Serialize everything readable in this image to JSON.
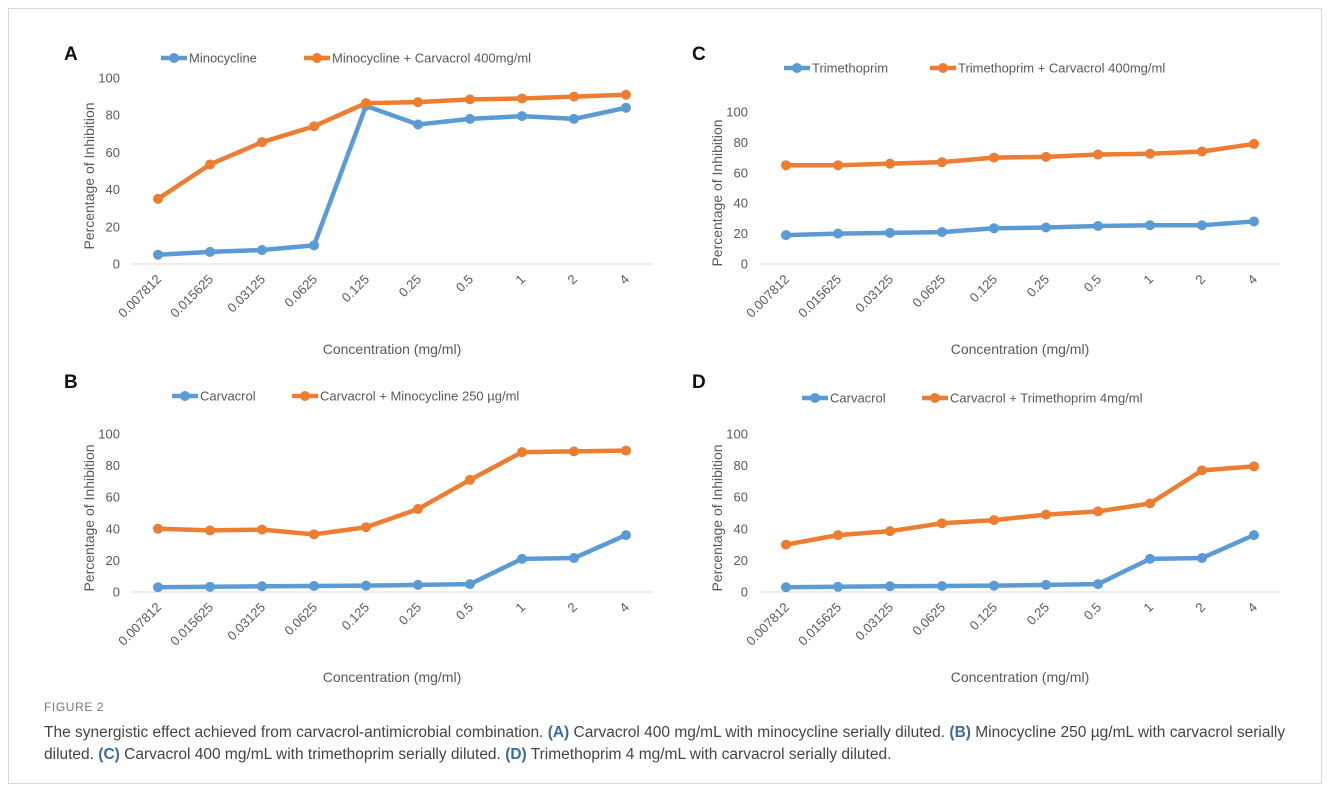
{
  "colors": {
    "series_a": "#5b9bd5",
    "series_b": "#ed7d31",
    "axis": "#d9d9d9",
    "text": "#595959"
  },
  "chart_data": [
    {
      "panel": "A",
      "type": "line",
      "categories": [
        "0.007812",
        "0.015625",
        "0.03125",
        "0.0625",
        "0.125",
        "0.25",
        "0.5",
        "1",
        "2",
        "4"
      ],
      "series": [
        {
          "name": "Minocycline",
          "values": [
            5,
            6.5,
            7.5,
            10,
            85,
            75,
            78,
            79.5,
            78,
            84
          ]
        },
        {
          "name": "Minocycline + Carvacrol 400mg/ml",
          "values": [
            35,
            53.5,
            65.5,
            74,
            86.5,
            87,
            88.5,
            89,
            90,
            91
          ]
        }
      ],
      "xlabel": "Concentration (mg/ml)",
      "ylabel": "Percentage of Inhibition",
      "ylim": [
        0,
        100
      ],
      "yticks": [
        0,
        20,
        40,
        60,
        80,
        100
      ],
      "grid": false,
      "legend": "top-left"
    },
    {
      "panel": "C",
      "type": "line",
      "categories": [
        "0.007812",
        "0.015625",
        "0.03125",
        "0.0625",
        "0.125",
        "0.25",
        "0.5",
        "1",
        "2",
        "4"
      ],
      "series": [
        {
          "name": "Trimethoprim",
          "values": [
            19,
            20,
            20.5,
            21,
            23.5,
            24,
            25,
            25.5,
            25.5,
            28
          ]
        },
        {
          "name": "Trimethoprim + Carvacrol 400mg/ml",
          "values": [
            65,
            65,
            66,
            67,
            70,
            70.5,
            72,
            72.5,
            74,
            79
          ]
        }
      ],
      "xlabel": "Concentration (mg/ml)",
      "ylabel": "Percentage of Inhibition",
      "ylim": [
        0,
        100
      ],
      "yticks": [
        0,
        20,
        40,
        60,
        80,
        100
      ],
      "grid": false,
      "legend": "top-left"
    },
    {
      "panel": "B",
      "type": "line",
      "categories": [
        "0.007812",
        "0.015625",
        "0.03125",
        "0.0625",
        "0.125",
        "0.25",
        "0.5",
        "1",
        "2",
        "4"
      ],
      "series": [
        {
          "name": "Carvacrol",
          "values": [
            3,
            3.3,
            3.6,
            3.8,
            4,
            4.5,
            5,
            21,
            21.5,
            36
          ]
        },
        {
          "name": "Carvacrol + Minocycline 250 µg/ml",
          "values": [
            40,
            39,
            39.5,
            36.5,
            41,
            52.5,
            71,
            88.5,
            89,
            89.5
          ]
        }
      ],
      "xlabel": "Concentration (mg/ml)",
      "ylabel": "Percentage of Inhibition",
      "ylim": [
        0,
        100
      ],
      "yticks": [
        0,
        20,
        40,
        60,
        80,
        100
      ],
      "grid": false,
      "legend": "top-left"
    },
    {
      "panel": "D",
      "type": "line",
      "categories": [
        "0.007812",
        "0.015625",
        "0.03125",
        "0.0625",
        "0.125",
        "0.25",
        "0.5",
        "1",
        "2",
        "4"
      ],
      "series": [
        {
          "name": "Carvacrol",
          "values": [
            3,
            3.3,
            3.6,
            3.8,
            4,
            4.5,
            5,
            21,
            21.5,
            36
          ]
        },
        {
          "name": "Carvacrol + Trimethoprim 4mg/ml",
          "values": [
            30,
            36,
            38.5,
            43.5,
            45.5,
            49,
            51,
            56,
            77,
            79.5
          ]
        }
      ],
      "xlabel": "Concentration (mg/ml)",
      "ylabel": "Percentage of Inhibition",
      "ylim": [
        0,
        100
      ],
      "yticks": [
        0,
        20,
        40,
        60,
        80,
        100
      ],
      "grid": false,
      "legend": "top-left"
    }
  ],
  "caption": {
    "label": "FIGURE 2",
    "intro": "The synergistic effect achieved from carvacrol-antimicrobial combination.",
    "parts": [
      {
        "tag": "(A)",
        "text": "Carvacrol 400 mg/mL with minocycline serially diluted."
      },
      {
        "tag": "(B)",
        "text": "Minocycline 250 µg/mL with carvacrol serially diluted."
      },
      {
        "tag": "(C)",
        "text": "Carvacrol 400 mg/mL with trimethoprim serially diluted."
      },
      {
        "tag": "(D)",
        "text": "Trimethoprim 4 mg/mL with carvacrol serially diluted."
      }
    ]
  }
}
